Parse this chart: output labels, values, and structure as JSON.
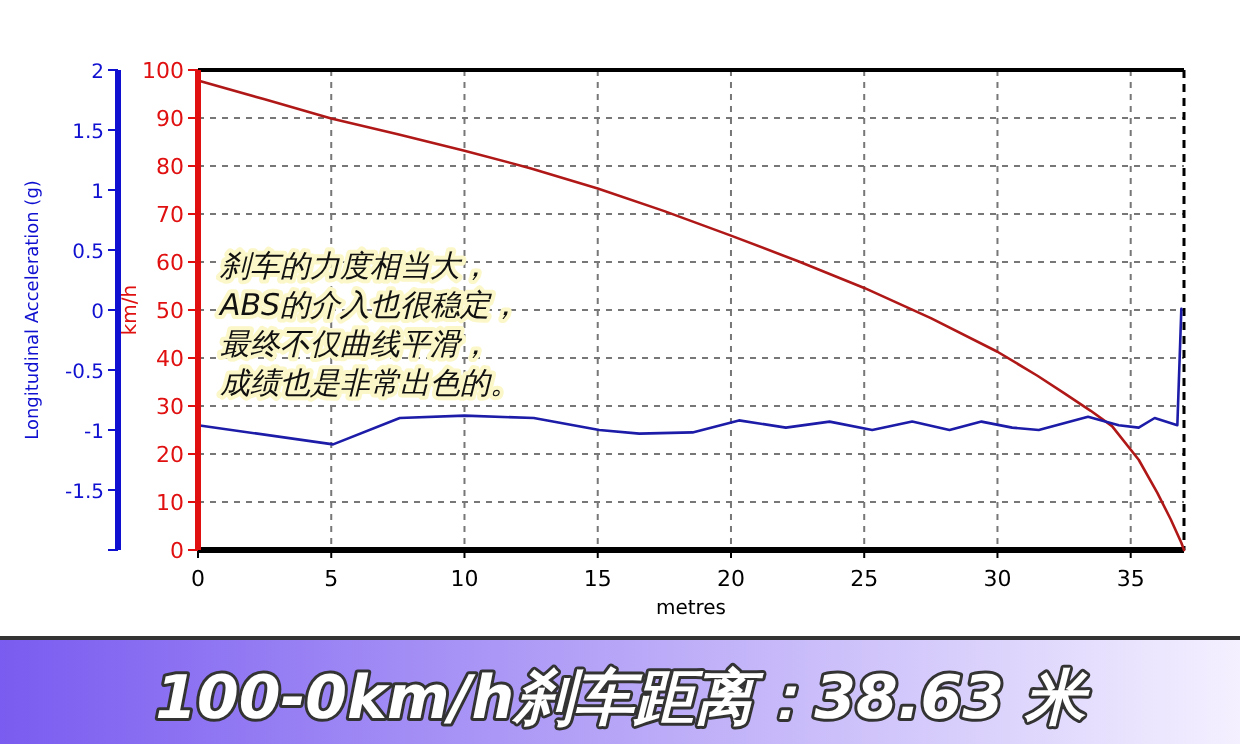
{
  "chart_data": {
    "type": "line",
    "title": "100-0km/h刹车距离：38.63 米",
    "xlabel": "metres",
    "ylabel": "km/h",
    "y2label": "Longitudinal Acceleration (g)",
    "xlim": [
      0,
      37
    ],
    "xticks": [
      0,
      5,
      10,
      15,
      20,
      25,
      30,
      35
    ],
    "ylim": [
      0,
      100
    ],
    "yticks": [
      0,
      10,
      20,
      30,
      40,
      50,
      60,
      70,
      80,
      90,
      100
    ],
    "y2lim": [
      -2,
      2
    ],
    "y2ticks": [
      {
        "value": -2,
        "label": null
      },
      -1.5,
      -1,
      -0.5,
      0,
      0.5,
      1,
      1.5,
      2
    ],
    "grid": true,
    "annotations": [
      "刹车的力度相当大，",
      "ABS的介入也很稳定，",
      "最终不仅曲线平滑，",
      "成绩也是非常出色的。"
    ],
    "series": [
      {
        "color": "#b01818",
        "x": [
          0,
          2.5,
          5,
          7.5,
          10,
          12.5,
          15,
          17.5,
          20,
          22.5,
          25,
          27.5,
          30,
          31.5,
          32.5,
          33.5,
          34.3,
          35.3,
          36,
          36.5,
          36.9,
          37
        ],
        "values": [
          97.8,
          93.9,
          89.9,
          86.6,
          83.2,
          79.5,
          75.3,
          70.6,
          65.5,
          60.2,
          54.6,
          48.3,
          41.3,
          36.3,
          32.7,
          29,
          25.8,
          18.8,
          11.9,
          6.4,
          1.5,
          0
        ]
      },
      {
        "color": "#1c1ca8",
        "axis": "y2",
        "x": [
          0,
          5.07,
          7.57,
          10,
          12.6,
          15.06,
          16.56,
          18.56,
          20.3,
          22.06,
          23.7,
          25.3,
          26.8,
          28.2,
          29.4,
          30.55,
          31.55,
          33.4,
          34.55,
          35.3,
          35.9,
          36.75,
          36.9
        ],
        "values": [
          -0.96,
          -1.12,
          -0.9,
          -0.88,
          -0.9,
          -1.0,
          -1.03,
          -1.02,
          -0.92,
          -0.98,
          -0.93,
          -1.0,
          -0.93,
          -1.0,
          -0.93,
          -0.98,
          -1.0,
          -0.89,
          -0.96,
          -0.98,
          -0.9,
          -0.96,
          0.01
        ]
      }
    ]
  }
}
